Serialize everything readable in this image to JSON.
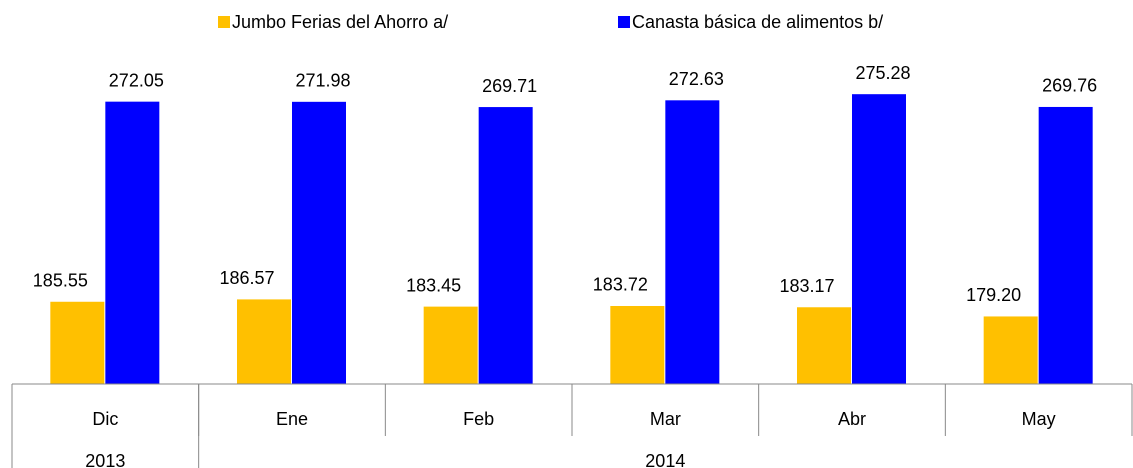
{
  "chart_data": {
    "type": "bar",
    "categories": [
      "Dic",
      "Ene",
      "Feb",
      "Mar",
      "Abr",
      "May"
    ],
    "year_groups": [
      {
        "label": "2013",
        "span": 1
      },
      {
        "label": "2014",
        "span": 5
      }
    ],
    "series": [
      {
        "name": "Jumbo Ferias del Ahorro a/",
        "color": "#ffc000",
        "values": [
          185.55,
          186.57,
          183.45,
          183.72,
          183.17,
          179.2
        ],
        "value_labels": [
          "185.55",
          "186.57",
          "183.45",
          "183.72",
          "183.17",
          "179.20"
        ]
      },
      {
        "name": "Canasta básica de alimentos b/",
        "color": "#0000ff",
        "values": [
          272.05,
          271.98,
          269.71,
          272.63,
          275.28,
          269.76
        ],
        "value_labels": [
          "272.05",
          "271.98",
          "269.71",
          "272.63",
          "275.28",
          "269.76"
        ]
      }
    ],
    "ylim": [
      150,
      300
    ],
    "legend": "top"
  }
}
